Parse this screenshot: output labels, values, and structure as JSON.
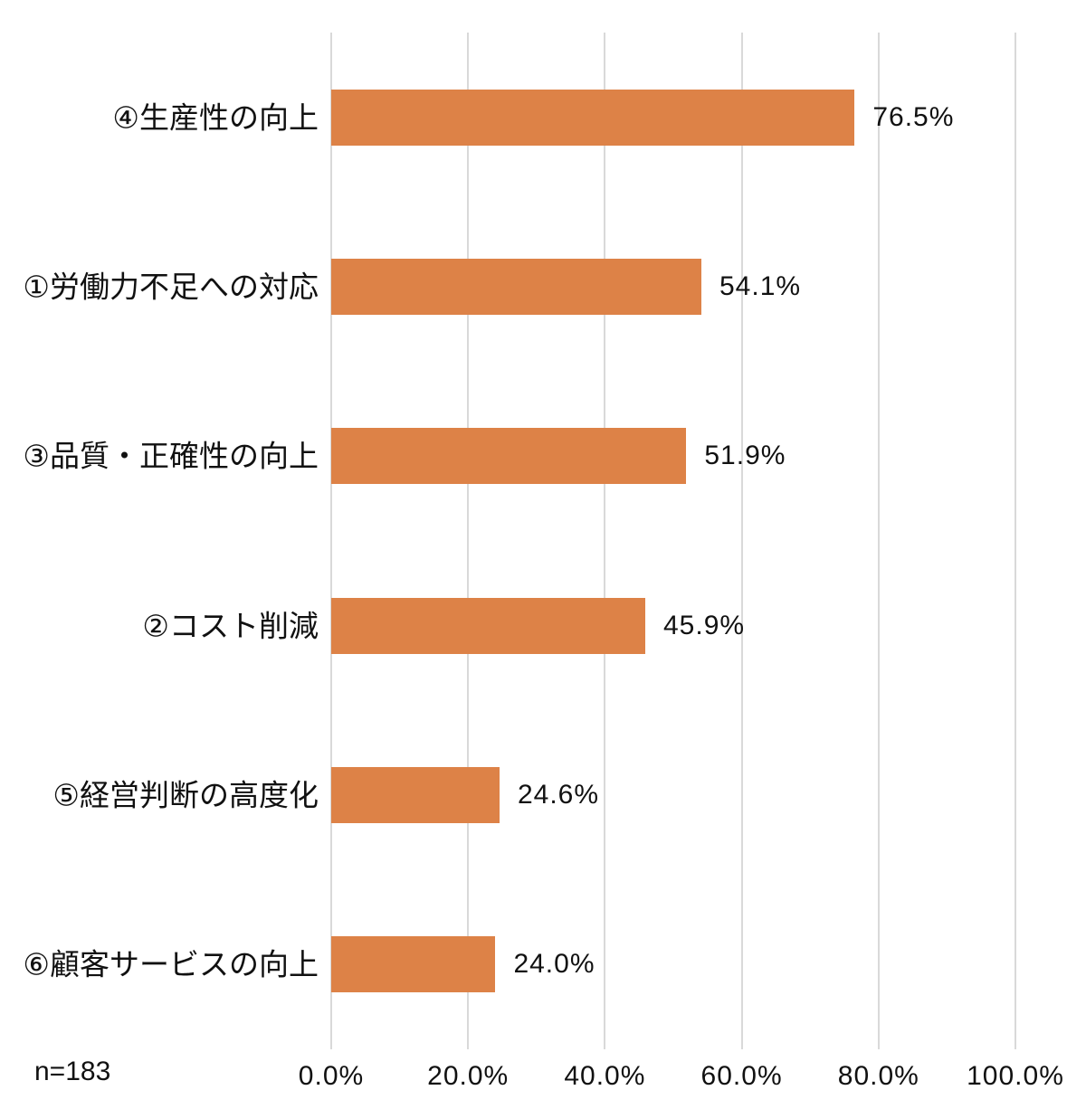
{
  "chart_data": {
    "type": "bar",
    "orientation": "horizontal",
    "title": "",
    "categories": [
      "④生産性の向上",
      "①労働力不足への対応",
      "③品質・正確性の向上",
      "②コスト削減",
      "⑤経営判断の高度化",
      "⑥顧客サービスの向上"
    ],
    "values": [
      76.5,
      54.1,
      51.9,
      45.9,
      24.6,
      24.0
    ],
    "value_labels": [
      "76.5%",
      "54.1%",
      "51.9%",
      "45.9%",
      "24.6%",
      "24.0%"
    ],
    "x_tick_labels": [
      "0.0%",
      "20.0%",
      "40.0%",
      "60.0%",
      "80.0%",
      "100.0%"
    ],
    "xlim": [
      0,
      100
    ],
    "annotation": "n=183",
    "grid": "vertical-only",
    "legend": "none",
    "bar_color": "#DD8247",
    "gridline_color": "#D9D9D9",
    "text_color": "#111111",
    "background_color": "#FFFFFF"
  }
}
